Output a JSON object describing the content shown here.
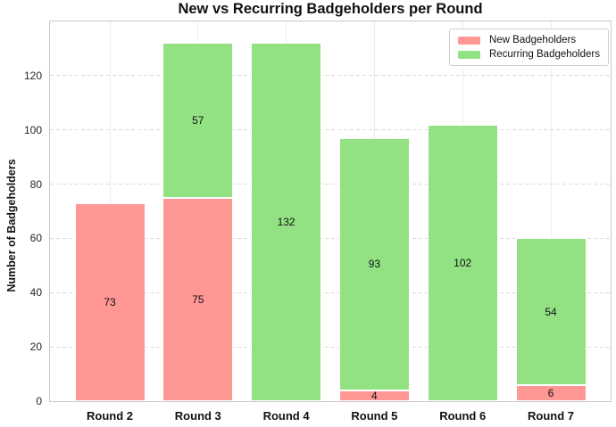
{
  "figure": {
    "background": "#ffffff"
  },
  "chart_data": {
    "type": "bar",
    "subtype": "stacked",
    "title": "New vs Recurring Badgeholders per Round",
    "xlabel": "",
    "ylabel": "Number of Badgeholders",
    "categories": [
      "Round 2",
      "Round 3",
      "Round 4",
      "Round 5",
      "Round 6",
      "Round 7"
    ],
    "series": [
      {
        "name": "New Badgeholders",
        "color": "#ff9794",
        "values": [
          73,
          75,
          0,
          4,
          0,
          6
        ]
      },
      {
        "name": "Recurring Badgeholders",
        "color": "#92e284",
        "values": [
          0,
          57,
          132,
          93,
          102,
          54
        ]
      }
    ],
    "segment_labels_visible": true,
    "yticks": [
      0,
      20,
      40,
      60,
      80,
      100,
      120
    ],
    "ylim": [
      0,
      140
    ],
    "grid": true,
    "legend_position": "upper right",
    "bar_edge_color": "#ffffff"
  }
}
